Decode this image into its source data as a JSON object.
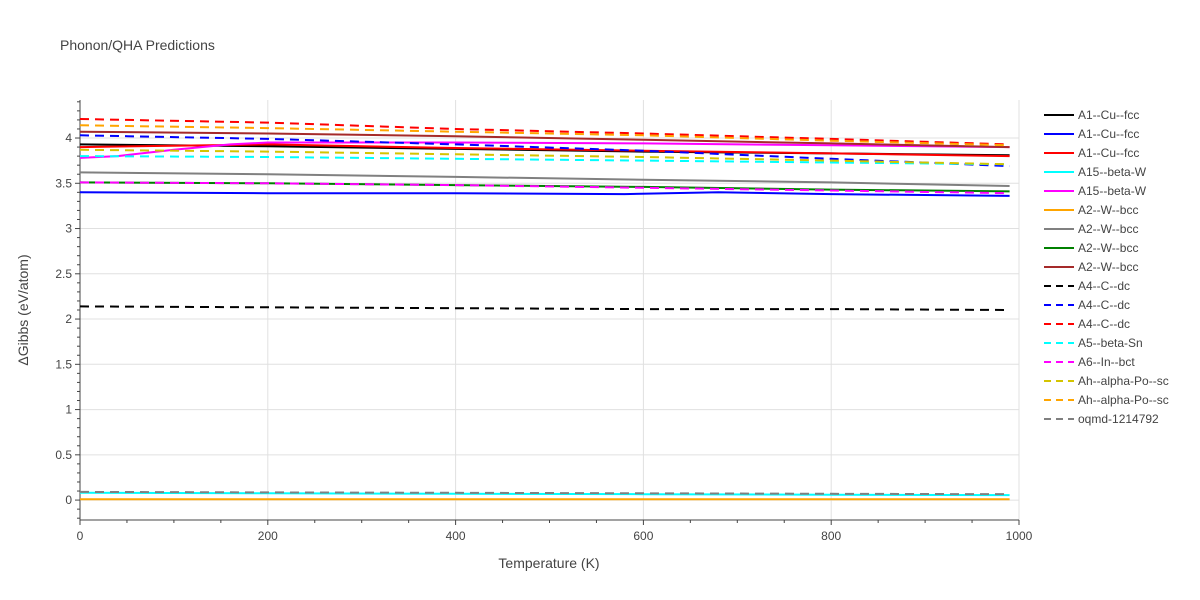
{
  "chart_data": {
    "type": "line",
    "title": "Phonon/QHA Predictions",
    "xlabel": "Temperature (K)",
    "ylabel": "ΔGibbs (eV/atom)",
    "xlim": [
      0,
      1000
    ],
    "ylim": [
      -0.22,
      4.42
    ],
    "xticks": [
      0,
      200,
      400,
      600,
      800,
      1000
    ],
    "yticks": [
      0,
      0.5,
      1,
      1.5,
      2,
      2.5,
      3,
      3.5,
      4
    ],
    "grid": true,
    "legend_position": "right",
    "series": [
      {
        "name": "A1--Cu--fcc",
        "color": "#000000",
        "dash": "solid",
        "x": [
          0,
          200,
          400,
          600,
          800,
          990
        ],
        "y": [
          3.93,
          3.91,
          3.88,
          3.85,
          3.83,
          3.81
        ]
      },
      {
        "name": "A1--Cu--fcc",
        "color": "#0000ff",
        "dash": "solid",
        "x": [
          0,
          200,
          400,
          580,
          680,
          800,
          990
        ],
        "y": [
          3.4,
          3.39,
          3.39,
          3.38,
          3.4,
          3.38,
          3.36
        ]
      },
      {
        "name": "A1--Cu--fcc",
        "color": "#ff0000",
        "dash": "solid",
        "x": [
          0,
          200,
          400,
          600,
          800,
          990
        ],
        "y": [
          3.9,
          3.93,
          3.89,
          3.86,
          3.83,
          3.8
        ]
      },
      {
        "name": "A15--beta-W",
        "color": "#00ffff",
        "dash": "solid",
        "x": [
          0,
          200,
          400,
          600,
          800,
          990
        ],
        "y": [
          0.08,
          0.075,
          0.07,
          0.065,
          0.06,
          0.055
        ]
      },
      {
        "name": "A15--beta-W",
        "color": "#ff00ff",
        "dash": "solid",
        "x": [
          0,
          40,
          100,
          160,
          200,
          400,
          600,
          800,
          990
        ],
        "y": [
          3.78,
          3.8,
          3.87,
          3.93,
          3.95,
          3.95,
          3.94,
          3.92,
          3.9
        ]
      },
      {
        "name": "A2--W--bcc",
        "color": "#ffa500",
        "dash": "solid",
        "x": [
          0,
          200,
          400,
          600,
          800,
          990
        ],
        "y": [
          0.01,
          0.01,
          0.01,
          0.01,
          0.01,
          0.01
        ]
      },
      {
        "name": "A2--W--bcc",
        "color": "#808080",
        "dash": "solid",
        "x": [
          0,
          200,
          400,
          600,
          800,
          990
        ],
        "y": [
          3.62,
          3.6,
          3.57,
          3.54,
          3.51,
          3.47
        ]
      },
      {
        "name": "A2--W--bcc",
        "color": "#008000",
        "dash": "solid",
        "x": [
          0,
          200,
          400,
          600,
          800,
          990
        ],
        "y": [
          3.51,
          3.5,
          3.48,
          3.46,
          3.43,
          3.41
        ]
      },
      {
        "name": "A2--W--bcc",
        "color": "#a52a2a",
        "dash": "solid",
        "x": [
          0,
          200,
          400,
          600,
          800,
          990
        ],
        "y": [
          4.07,
          4.05,
          4.02,
          3.98,
          3.94,
          3.9
        ]
      },
      {
        "name": "A4--C--dc",
        "color": "#000000",
        "dash": "dash",
        "x": [
          0,
          200,
          400,
          600,
          800,
          990
        ],
        "y": [
          2.14,
          2.13,
          2.12,
          2.11,
          2.11,
          2.1
        ]
      },
      {
        "name": "A4--C--dc",
        "color": "#0000ff",
        "dash": "dash",
        "x": [
          0,
          200,
          400,
          600,
          800,
          990
        ],
        "y": [
          4.03,
          3.99,
          3.93,
          3.86,
          3.77,
          3.69
        ]
      },
      {
        "name": "A4--C--dc",
        "color": "#ff0000",
        "dash": "dash",
        "x": [
          0,
          200,
          400,
          600,
          800,
          990
        ],
        "y": [
          4.21,
          4.17,
          4.1,
          4.05,
          3.99,
          3.93
        ]
      },
      {
        "name": "A5--beta-Sn",
        "color": "#00ffff",
        "dash": "dash",
        "x": [
          0,
          200,
          400,
          600,
          800,
          990
        ],
        "y": [
          3.8,
          3.79,
          3.77,
          3.75,
          3.73,
          3.71
        ]
      },
      {
        "name": "A6--In--bct",
        "color": "#ff00ff",
        "dash": "dash",
        "x": [
          0,
          200,
          400,
          600,
          800,
          990
        ],
        "y": [
          3.51,
          3.5,
          3.48,
          3.45,
          3.42,
          3.39
        ]
      },
      {
        "name": "Ah--alpha-Po--sc",
        "color": "#d4c400",
        "dash": "dash",
        "x": [
          0,
          200,
          400,
          600,
          800,
          990
        ],
        "y": [
          3.87,
          3.85,
          3.82,
          3.79,
          3.75,
          3.71
        ]
      },
      {
        "name": "Ah--alpha-Po--sc",
        "color": "#ffa500",
        "dash": "dash",
        "x": [
          0,
          200,
          400,
          600,
          800,
          990
        ],
        "y": [
          4.14,
          4.11,
          4.07,
          4.03,
          3.97,
          3.92
        ]
      },
      {
        "name": "oqmd-1214792",
        "color": "#808080",
        "dash": "dash",
        "x": [
          0,
          200,
          400,
          600,
          800,
          990
        ],
        "y": [
          0.09,
          0.085,
          0.08,
          0.075,
          0.07,
          0.065
        ]
      }
    ]
  }
}
